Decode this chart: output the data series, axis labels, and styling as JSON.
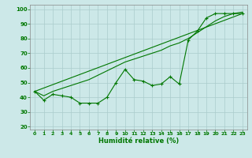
{
  "title": "",
  "xlabel": "Humidité relative (%)",
  "ylabel": "",
  "xlim": [
    -0.5,
    23.5
  ],
  "ylim": [
    18,
    103
  ],
  "yticks": [
    20,
    30,
    40,
    50,
    60,
    70,
    80,
    90,
    100
  ],
  "xticks": [
    0,
    1,
    2,
    3,
    4,
    5,
    6,
    7,
    8,
    9,
    10,
    11,
    12,
    13,
    14,
    15,
    16,
    17,
    18,
    19,
    20,
    21,
    22,
    23
  ],
  "bg_color": "#cce8e8",
  "grid_color": "#aacccc",
  "line_color": "#007700",
  "line1_x": [
    0,
    1,
    2,
    3,
    4,
    5,
    6,
    7,
    8,
    9,
    10,
    11,
    12,
    13,
    14,
    15,
    16,
    17,
    18,
    19,
    20,
    21,
    22,
    23
  ],
  "line1_y": [
    44,
    38,
    42,
    41,
    40,
    36,
    36,
    36,
    40,
    50,
    59,
    52,
    51,
    48,
    49,
    54,
    49,
    79,
    85,
    94,
    97,
    97,
    97,
    97
  ],
  "line2_x": [
    0,
    1,
    2,
    3,
    4,
    5,
    6,
    7,
    8,
    9,
    10,
    11,
    12,
    13,
    14,
    15,
    16,
    17,
    18,
    19,
    20,
    21,
    22,
    23
  ],
  "line2_y": [
    44,
    41,
    44,
    46,
    48,
    50,
    52,
    55,
    58,
    61,
    64,
    66,
    68,
    70,
    72,
    75,
    77,
    80,
    84,
    88,
    92,
    95,
    97,
    98
  ],
  "line3_x": [
    0,
    23
  ],
  "line3_y": [
    44,
    97
  ]
}
